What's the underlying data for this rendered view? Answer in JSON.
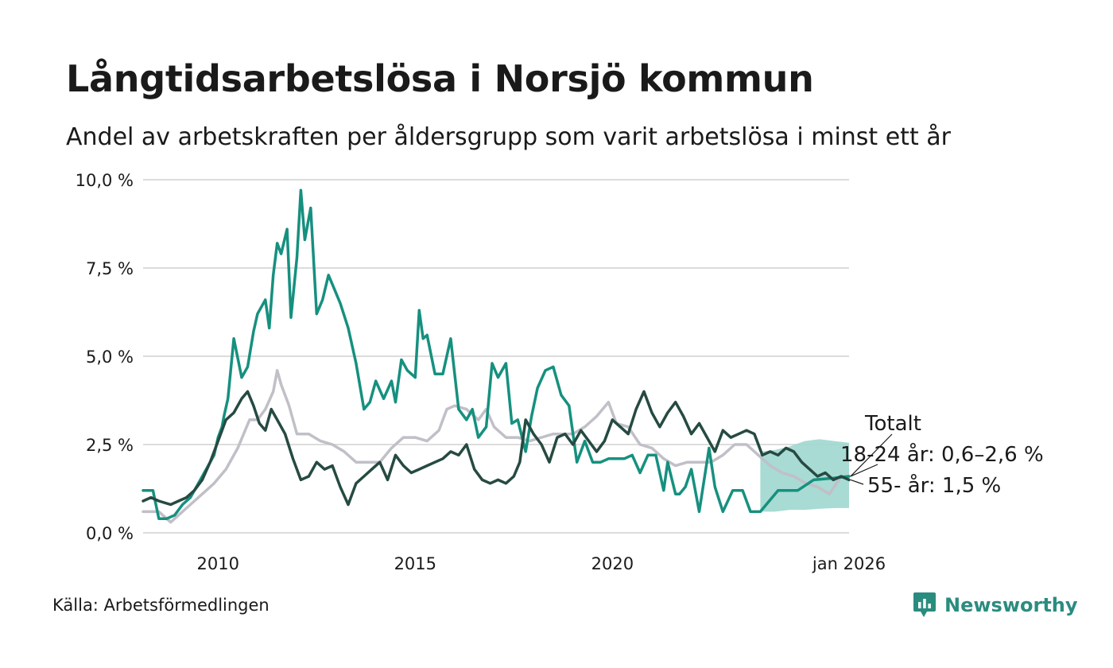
{
  "title": "Långtidsarbetslösa i Norsjö kommun",
  "subtitle": "Andel av arbetskraften per åldersgrupp som varit arbetslösa i minst ett år",
  "source": "Källa: Arbetsförmedlingen",
  "brand": {
    "name": "Newsworthy",
    "icon": "newsworthy-logo-icon"
  },
  "colors": {
    "age_18_24": "#16907f",
    "age_55": "#264a42",
    "total": "#c1bfc7",
    "band": "#9fd7cf",
    "grid": "#dcdcdc",
    "brand": "#2a8c7f"
  },
  "chart_data": {
    "type": "line",
    "title": "Långtidsarbetslösa i Norsjö kommun",
    "xlabel": "",
    "ylabel": "",
    "xlim": [
      2008.1,
      2026.0
    ],
    "ylim": [
      0,
      10
    ],
    "y_ticks": [
      {
        "value": 0,
        "label": "0,0 %"
      },
      {
        "value": 2.5,
        "label": "2,5 %"
      },
      {
        "value": 5,
        "label": "5,0 %"
      },
      {
        "value": 7.5,
        "label": "7,5 %"
      },
      {
        "value": 10,
        "label": "10,0 %"
      }
    ],
    "x_ticks": [
      {
        "value": 2010,
        "label": "2010"
      },
      {
        "value": 2015,
        "label": "2015"
      },
      {
        "value": 2020,
        "label": "2020"
      },
      {
        "value": 2026,
        "label": "jan 2026"
      }
    ],
    "grid": true,
    "series": [
      {
        "name": "Totalt",
        "key": "total",
        "x": [
          2008.1,
          2008.5,
          2008.8,
          2009.0,
          2009.3,
          2009.6,
          2009.9,
          2010.2,
          2010.5,
          2010.8,
          2011.0,
          2011.2,
          2011.4,
          2011.5,
          2011.6,
          2011.8,
          2012.0,
          2012.3,
          2012.6,
          2012.9,
          2013.2,
          2013.5,
          2013.8,
          2014.1,
          2014.4,
          2014.7,
          2015.0,
          2015.3,
          2015.6,
          2015.8,
          2016.0,
          2016.3,
          2016.6,
          2016.8,
          2017.0,
          2017.3,
          2017.6,
          2017.9,
          2018.2,
          2018.5,
          2018.8,
          2019.0,
          2019.3,
          2019.6,
          2019.9,
          2020.1,
          2020.4,
          2020.7,
          2021.0,
          2021.3,
          2021.6,
          2021.9,
          2022.2,
          2022.5,
          2022.8,
          2023.1,
          2023.4,
          2023.7,
          2024.0,
          2024.3,
          2024.6,
          2024.9,
          2025.2,
          2025.5,
          2025.8,
          2026.0
        ],
        "y": [
          0.6,
          0.6,
          0.3,
          0.5,
          0.8,
          1.1,
          1.4,
          1.8,
          2.4,
          3.2,
          3.2,
          3.5,
          4.0,
          4.6,
          4.2,
          3.6,
          2.8,
          2.8,
          2.6,
          2.5,
          2.3,
          2.0,
          2.0,
          2.0,
          2.4,
          2.7,
          2.7,
          2.6,
          2.9,
          3.5,
          3.6,
          3.5,
          3.2,
          3.5,
          3.0,
          2.7,
          2.7,
          2.6,
          2.7,
          2.8,
          2.8,
          2.8,
          3.0,
          3.3,
          3.7,
          3.1,
          3.0,
          2.5,
          2.4,
          2.1,
          1.9,
          2.0,
          2.0,
          2.0,
          2.2,
          2.5,
          2.5,
          2.2,
          1.9,
          1.7,
          1.6,
          1.4,
          1.3,
          1.1,
          1.6,
          1.6
        ]
      },
      {
        "name": "18-24 år",
        "key": "age_18_24",
        "x": [
          2008.1,
          2008.35,
          2008.5,
          2008.7,
          2008.9,
          2009.1,
          2009.3,
          2009.5,
          2009.7,
          2009.9,
          2010.0,
          2010.1,
          2010.15,
          2010.25,
          2010.4,
          2010.6,
          2010.75,
          2010.9,
          2011.0,
          2011.2,
          2011.3,
          2011.4,
          2011.5,
          2011.6,
          2011.75,
          2011.85,
          2012.0,
          2012.1,
          2012.2,
          2012.35,
          2012.5,
          2012.65,
          2012.8,
          2012.95,
          2013.1,
          2013.3,
          2013.5,
          2013.7,
          2013.85,
          2014.0,
          2014.2,
          2014.4,
          2014.5,
          2014.65,
          2014.8,
          2015.0,
          2015.1,
          2015.2,
          2015.3,
          2015.5,
          2015.7,
          2015.9,
          2016.1,
          2016.3,
          2016.45,
          2016.6,
          2016.8,
          2016.95,
          2017.1,
          2017.3,
          2017.45,
          2017.6,
          2017.8,
          2017.95,
          2018.1,
          2018.3,
          2018.5,
          2018.7,
          2018.9,
          2019.1,
          2019.3,
          2019.5,
          2019.7,
          2019.9,
          2020.1,
          2020.3,
          2020.5,
          2020.7,
          2020.9,
          2021.1,
          2021.3,
          2021.4,
          2021.6,
          2021.7,
          2021.85,
          2022.0,
          2022.2,
          2022.45,
          2022.6,
          2022.8,
          2023.05,
          2023.3,
          2023.5,
          2023.75,
          2024.2,
          2024.7,
          2025.1,
          2025.6,
          2026.0
        ],
        "y": [
          1.2,
          1.2,
          0.4,
          0.4,
          0.5,
          0.8,
          1.0,
          1.4,
          1.8,
          2.2,
          2.7,
          3.0,
          3.3,
          3.8,
          5.5,
          4.4,
          4.7,
          5.7,
          6.2,
          6.6,
          5.8,
          7.3,
          8.2,
          7.9,
          8.6,
          6.1,
          7.8,
          9.7,
          8.3,
          9.2,
          6.2,
          6.6,
          7.3,
          6.9,
          6.5,
          5.8,
          4.8,
          3.5,
          3.7,
          4.3,
          3.8,
          4.3,
          3.7,
          4.9,
          4.6,
          4.4,
          6.3,
          5.5,
          5.6,
          4.5,
          4.5,
          5.5,
          3.5,
          3.2,
          3.5,
          2.7,
          3.0,
          4.8,
          4.4,
          4.8,
          3.1,
          3.2,
          2.3,
          3.3,
          4.1,
          4.6,
          4.7,
          3.9,
          3.6,
          2.0,
          2.6,
          2.0,
          2.0,
          2.1,
          2.1,
          2.1,
          2.2,
          1.7,
          2.2,
          2.2,
          1.2,
          2.0,
          1.1,
          1.1,
          1.3,
          1.8,
          0.6,
          2.4,
          1.3,
          0.6,
          1.2,
          1.2,
          0.6,
          0.6,
          1.2,
          1.2,
          1.5,
          1.55,
          1.6
        ],
        "band": {
          "x_start": 2023.75,
          "x_end": 2026.0,
          "lower": [
            0.6,
            0.6,
            0.65,
            0.65,
            0.68,
            0.7,
            0.7
          ],
          "upper": [
            2.3,
            2.35,
            2.45,
            2.6,
            2.65,
            2.6,
            2.55
          ]
        }
      },
      {
        "name": "55- år",
        "key": "age_55",
        "x": [
          2008.1,
          2008.3,
          2008.5,
          2008.8,
          2009.0,
          2009.2,
          2009.4,
          2009.6,
          2009.8,
          2010.0,
          2010.2,
          2010.4,
          2010.6,
          2010.75,
          2010.9,
          2011.05,
          2011.2,
          2011.35,
          2011.5,
          2011.7,
          2011.9,
          2012.1,
          2012.3,
          2012.5,
          2012.7,
          2012.9,
          2013.1,
          2013.3,
          2013.5,
          2013.7,
          2013.9,
          2014.1,
          2014.3,
          2014.5,
          2014.7,
          2014.9,
          2015.1,
          2015.3,
          2015.5,
          2015.7,
          2015.9,
          2016.1,
          2016.3,
          2016.5,
          2016.7,
          2016.9,
          2017.1,
          2017.3,
          2017.5,
          2017.65,
          2017.8,
          2018.0,
          2018.2,
          2018.4,
          2018.6,
          2018.8,
          2019.0,
          2019.2,
          2019.4,
          2019.6,
          2019.8,
          2020.0,
          2020.2,
          2020.4,
          2020.6,
          2020.8,
          2021.0,
          2021.2,
          2021.4,
          2021.6,
          2021.8,
          2022.0,
          2022.2,
          2022.4,
          2022.6,
          2022.8,
          2023.0,
          2023.2,
          2023.4,
          2023.6,
          2023.8,
          2024.0,
          2024.2,
          2024.4,
          2024.6,
          2024.8,
          2025.0,
          2025.2,
          2025.4,
          2025.6,
          2025.8,
          2026.0
        ],
        "y": [
          0.9,
          1.0,
          0.9,
          0.8,
          0.9,
          1.0,
          1.2,
          1.5,
          2.0,
          2.6,
          3.2,
          3.4,
          3.8,
          4.0,
          3.6,
          3.1,
          2.9,
          3.5,
          3.2,
          2.8,
          2.1,
          1.5,
          1.6,
          2.0,
          1.8,
          1.9,
          1.3,
          0.8,
          1.4,
          1.6,
          1.8,
          2.0,
          1.5,
          2.2,
          1.9,
          1.7,
          1.8,
          1.9,
          2.0,
          2.1,
          2.3,
          2.2,
          2.5,
          1.8,
          1.5,
          1.4,
          1.5,
          1.4,
          1.6,
          2.0,
          3.2,
          2.8,
          2.5,
          2.0,
          2.7,
          2.8,
          2.5,
          2.9,
          2.6,
          2.3,
          2.6,
          3.2,
          3.0,
          2.8,
          3.5,
          4.0,
          3.4,
          3.0,
          3.4,
          3.7,
          3.3,
          2.8,
          3.1,
          2.7,
          2.3,
          2.9,
          2.7,
          2.8,
          2.9,
          2.8,
          2.2,
          2.3,
          2.2,
          2.4,
          2.3,
          2.0,
          1.8,
          1.6,
          1.7,
          1.5,
          1.6,
          1.5
        ]
      }
    ],
    "annotations": [
      {
        "text": "Totalt",
        "series": "total"
      },
      {
        "text": "18-24 år: 0,6–2,6 %",
        "series": "age_18_24"
      },
      {
        "text": "55- år: 1,5 %",
        "series": "age_55"
      }
    ]
  }
}
